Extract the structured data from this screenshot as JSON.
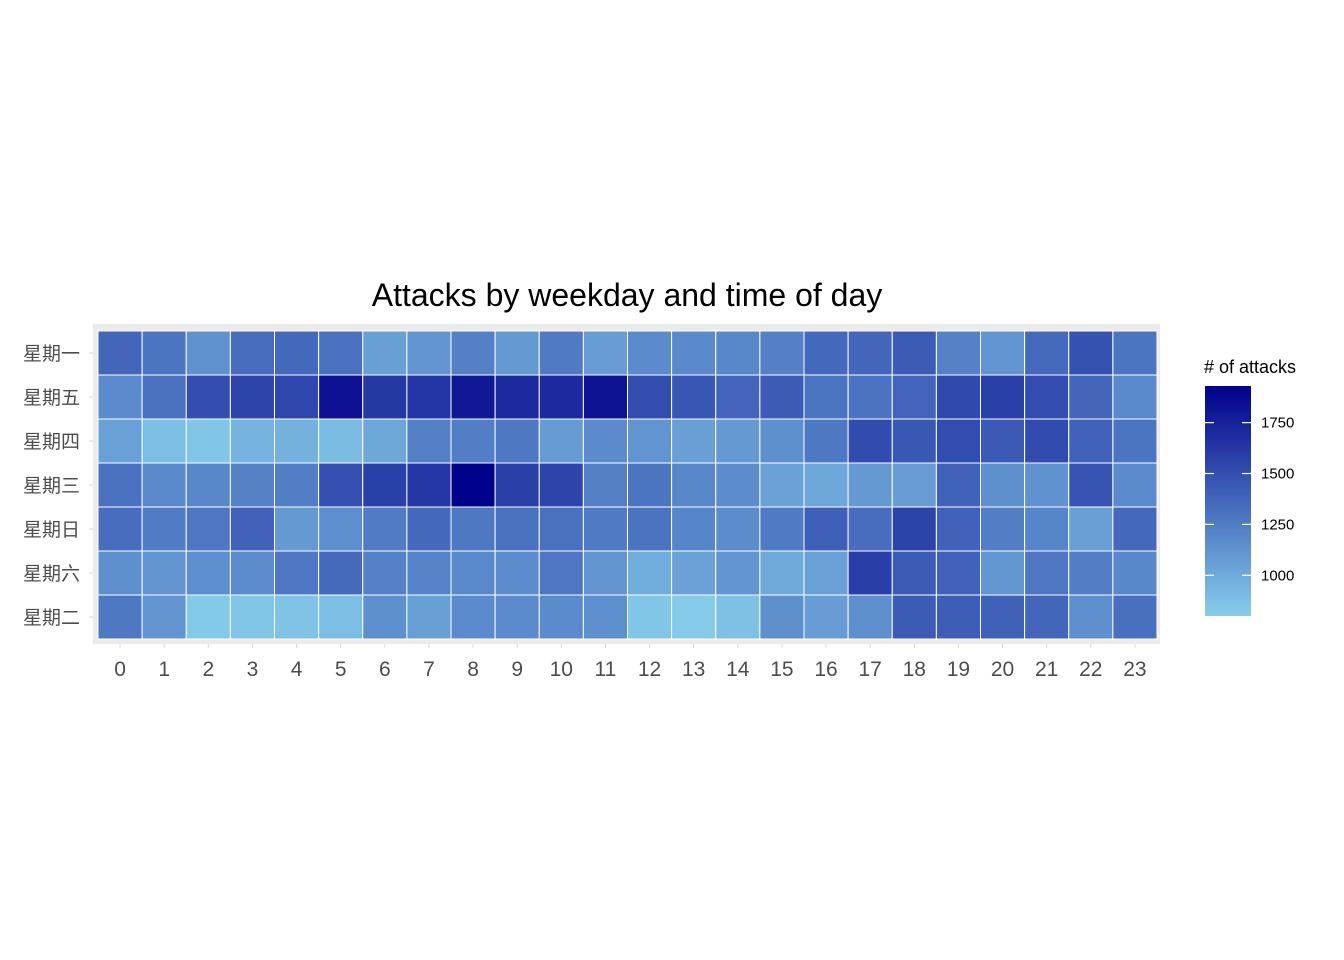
{
  "chart_data": {
    "type": "heatmap",
    "title": "Attacks by weekday and time of day",
    "xlabel": "",
    "ylabel": "",
    "x_categories": [
      "0",
      "1",
      "2",
      "3",
      "4",
      "5",
      "6",
      "7",
      "8",
      "9",
      "10",
      "11",
      "12",
      "13",
      "14",
      "15",
      "16",
      "17",
      "18",
      "19",
      "20",
      "21",
      "22",
      "23"
    ],
    "y_categories": [
      "星期一",
      "星期五",
      "星期四",
      "星期三",
      "星期日",
      "星期六",
      "星期二"
    ],
    "values": [
      [
        1370,
        1290,
        1130,
        1330,
        1360,
        1310,
        1060,
        1110,
        1230,
        1090,
        1260,
        1070,
        1170,
        1180,
        1190,
        1230,
        1360,
        1370,
        1430,
        1220,
        1110,
        1350,
        1480,
        1290
      ],
      [
        1170,
        1310,
        1500,
        1550,
        1540,
        1830,
        1620,
        1640,
        1800,
        1700,
        1700,
        1820,
        1510,
        1460,
        1380,
        1430,
        1290,
        1300,
        1380,
        1530,
        1580,
        1510,
        1370,
        1180
      ],
      [
        1050,
        880,
        850,
        940,
        960,
        900,
        1010,
        1230,
        1240,
        1270,
        1080,
        1170,
        1120,
        1060,
        1090,
        1140,
        1270,
        1520,
        1450,
        1510,
        1440,
        1520,
        1390,
        1290
      ],
      [
        1310,
        1180,
        1190,
        1220,
        1240,
        1490,
        1580,
        1630,
        1920,
        1580,
        1550,
        1230,
        1290,
        1190,
        1160,
        1040,
        1020,
        1090,
        1070,
        1390,
        1140,
        1130,
        1470,
        1170
      ],
      [
        1330,
        1250,
        1280,
        1390,
        1090,
        1150,
        1250,
        1360,
        1270,
        1310,
        1310,
        1260,
        1300,
        1200,
        1160,
        1260,
        1410,
        1330,
        1560,
        1390,
        1240,
        1200,
        1060,
        1360
      ],
      [
        1140,
        1110,
        1150,
        1160,
        1280,
        1350,
        1220,
        1210,
        1180,
        1160,
        1280,
        1110,
        980,
        1040,
        1110,
        1000,
        1050,
        1590,
        1430,
        1390,
        1100,
        1280,
        1240,
        1190
      ],
      [
        1270,
        1120,
        830,
        850,
        860,
        880,
        1140,
        1060,
        1170,
        1170,
        1170,
        1150,
        850,
        820,
        870,
        1140,
        1070,
        1140,
        1430,
        1420,
        1400,
        1370,
        1150,
        1320
      ]
    ],
    "color_scale": {
      "low": "#87ceeb",
      "high": "#00008b",
      "min": 800,
      "max": 1930
    },
    "legend": {
      "title": "# of attacks",
      "ticks": [
        1000,
        1250,
        1500,
        1750
      ],
      "position": "right"
    },
    "background": "#ebebeb",
    "tile_border": "#ffffff"
  }
}
